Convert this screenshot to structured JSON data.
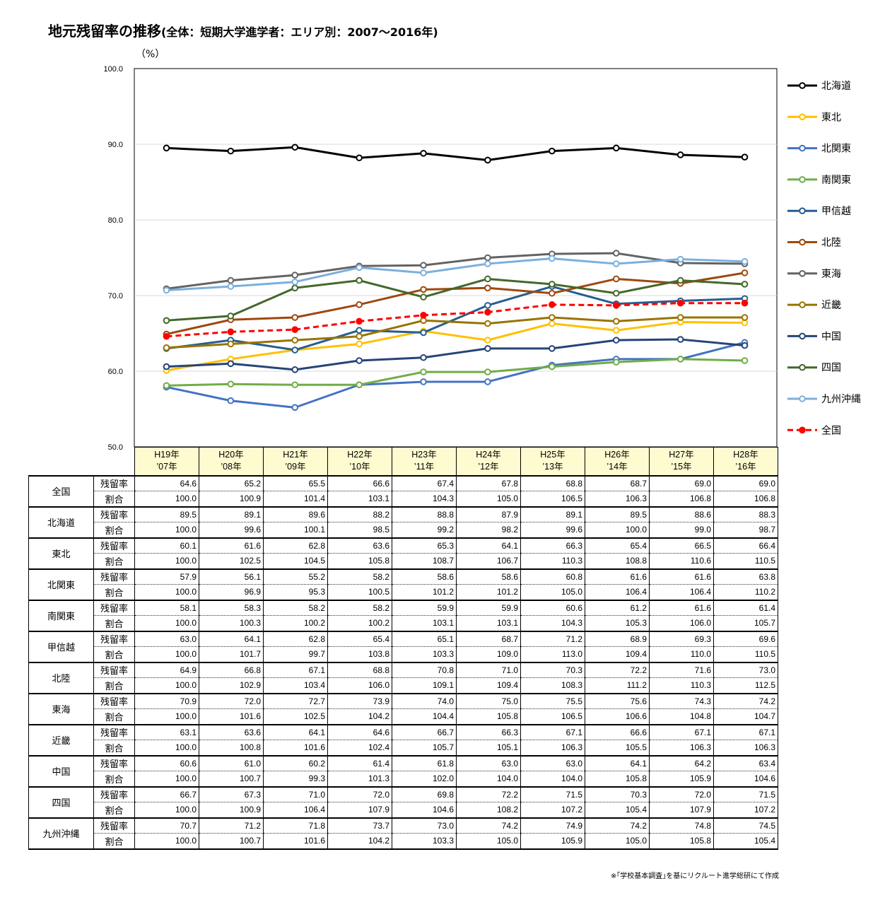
{
  "header": {
    "title_main": "地元残留率の推移",
    "title_sub": "(全体：短期大学進学者：エリア別：2007～2016年)",
    "unit": "（%）"
  },
  "chart_data": {
    "type": "line",
    "ylim": [
      50.0,
      100.0
    ],
    "yticks": [
      "50.0",
      "60.0",
      "70.0",
      "80.0",
      "90.0",
      "100.0"
    ],
    "grid": true,
    "legend_position": "right",
    "categories": [
      [
        "H19年",
        "’07年"
      ],
      [
        "H20年",
        "’08年"
      ],
      [
        "H21年",
        "’09年"
      ],
      [
        "H22年",
        "’10年"
      ],
      [
        "H23年",
        "’11年"
      ],
      [
        "H24年",
        "’12年"
      ],
      [
        "H25年",
        "’13年"
      ],
      [
        "H26年",
        "’14年"
      ],
      [
        "H27年",
        "’15年"
      ],
      [
        "H28年",
        "’16年"
      ]
    ],
    "series": [
      {
        "name": "北海道",
        "color": "#000000",
        "dashed": false,
        "values": [
          89.5,
          89.1,
          89.6,
          88.2,
          88.8,
          87.9,
          89.1,
          89.5,
          88.6,
          88.3
        ]
      },
      {
        "name": "東北",
        "color": "#ffc000",
        "dashed": false,
        "values": [
          60.1,
          61.6,
          62.8,
          63.6,
          65.3,
          64.1,
          66.3,
          65.4,
          66.5,
          66.4
        ]
      },
      {
        "name": "北関東",
        "color": "#4472c4",
        "dashed": false,
        "values": [
          57.9,
          56.1,
          55.2,
          58.2,
          58.6,
          58.6,
          60.8,
          61.6,
          61.6,
          63.8
        ]
      },
      {
        "name": "南関東",
        "color": "#70ad47",
        "dashed": false,
        "values": [
          58.1,
          58.3,
          58.2,
          58.2,
          59.9,
          59.9,
          60.6,
          61.2,
          61.6,
          61.4
        ]
      },
      {
        "name": "甲信越",
        "color": "#255e91",
        "dashed": false,
        "values": [
          63.0,
          64.1,
          62.8,
          65.4,
          65.1,
          68.7,
          71.2,
          68.9,
          69.3,
          69.6
        ]
      },
      {
        "name": "北陸",
        "color": "#9e480e",
        "dashed": false,
        "values": [
          64.9,
          66.8,
          67.1,
          68.8,
          70.8,
          71.0,
          70.3,
          72.2,
          71.6,
          73.0
        ]
      },
      {
        "name": "東海",
        "color": "#636363",
        "dashed": false,
        "values": [
          70.9,
          72.0,
          72.7,
          73.9,
          74.0,
          75.0,
          75.5,
          75.6,
          74.3,
          74.2
        ]
      },
      {
        "name": "近畿",
        "color": "#997300",
        "dashed": false,
        "values": [
          63.1,
          63.6,
          64.1,
          64.6,
          66.7,
          66.3,
          67.1,
          66.6,
          67.1,
          67.1
        ]
      },
      {
        "name": "中国",
        "color": "#264478",
        "dashed": false,
        "values": [
          60.6,
          61.0,
          60.2,
          61.4,
          61.8,
          63.0,
          63.0,
          64.1,
          64.2,
          63.4
        ]
      },
      {
        "name": "四国",
        "color": "#43682b",
        "dashed": false,
        "values": [
          66.7,
          67.3,
          71.0,
          72.0,
          69.8,
          72.2,
          71.5,
          70.3,
          72.0,
          71.5
        ]
      },
      {
        "name": "九州沖縄",
        "color": "#7cafdd",
        "dashed": false,
        "values": [
          70.7,
          71.2,
          71.8,
          73.7,
          73.0,
          74.2,
          74.9,
          74.2,
          74.8,
          74.5
        ]
      },
      {
        "name": "全国",
        "color": "#ff0000",
        "dashed": true,
        "values": [
          64.6,
          65.2,
          65.5,
          66.6,
          67.4,
          67.8,
          68.8,
          68.7,
          69.0,
          69.0
        ]
      }
    ]
  },
  "table": {
    "row_label_rate": "残留率",
    "row_label_ratio": "割合",
    "rows": [
      {
        "region": "全国",
        "rate": [
          "64.6",
          "65.2",
          "65.5",
          "66.6",
          "67.4",
          "67.8",
          "68.8",
          "68.7",
          "69.0",
          "69.0"
        ],
        "ratio": [
          "100.0",
          "100.9",
          "101.4",
          "103.1",
          "104.3",
          "105.0",
          "106.5",
          "106.3",
          "106.8",
          "106.8"
        ]
      },
      {
        "region": "北海道",
        "rate": [
          "89.5",
          "89.1",
          "89.6",
          "88.2",
          "88.8",
          "87.9",
          "89.1",
          "89.5",
          "88.6",
          "88.3"
        ],
        "ratio": [
          "100.0",
          "99.6",
          "100.1",
          "98.5",
          "99.2",
          "98.2",
          "99.6",
          "100.0",
          "99.0",
          "98.7"
        ]
      },
      {
        "region": "東北",
        "rate": [
          "60.1",
          "61.6",
          "62.8",
          "63.6",
          "65.3",
          "64.1",
          "66.3",
          "65.4",
          "66.5",
          "66.4"
        ],
        "ratio": [
          "100.0",
          "102.5",
          "104.5",
          "105.8",
          "108.7",
          "106.7",
          "110.3",
          "108.8",
          "110.6",
          "110.5"
        ]
      },
      {
        "region": "北関東",
        "rate": [
          "57.9",
          "56.1",
          "55.2",
          "58.2",
          "58.6",
          "58.6",
          "60.8",
          "61.6",
          "61.6",
          "63.8"
        ],
        "ratio": [
          "100.0",
          "96.9",
          "95.3",
          "100.5",
          "101.2",
          "101.2",
          "105.0",
          "106.4",
          "106.4",
          "110.2"
        ]
      },
      {
        "region": "南関東",
        "rate": [
          "58.1",
          "58.3",
          "58.2",
          "58.2",
          "59.9",
          "59.9",
          "60.6",
          "61.2",
          "61.6",
          "61.4"
        ],
        "ratio": [
          "100.0",
          "100.3",
          "100.2",
          "100.2",
          "103.1",
          "103.1",
          "104.3",
          "105.3",
          "106.0",
          "105.7"
        ]
      },
      {
        "region": "甲信越",
        "rate": [
          "63.0",
          "64.1",
          "62.8",
          "65.4",
          "65.1",
          "68.7",
          "71.2",
          "68.9",
          "69.3",
          "69.6"
        ],
        "ratio": [
          "100.0",
          "101.7",
          "99.7",
          "103.8",
          "103.3",
          "109.0",
          "113.0",
          "109.4",
          "110.0",
          "110.5"
        ]
      },
      {
        "region": "北陸",
        "rate": [
          "64.9",
          "66.8",
          "67.1",
          "68.8",
          "70.8",
          "71.0",
          "70.3",
          "72.2",
          "71.6",
          "73.0"
        ],
        "ratio": [
          "100.0",
          "102.9",
          "103.4",
          "106.0",
          "109.1",
          "109.4",
          "108.3",
          "111.2",
          "110.3",
          "112.5"
        ]
      },
      {
        "region": "東海",
        "rate": [
          "70.9",
          "72.0",
          "72.7",
          "73.9",
          "74.0",
          "75.0",
          "75.5",
          "75.6",
          "74.3",
          "74.2"
        ],
        "ratio": [
          "100.0",
          "101.6",
          "102.5",
          "104.2",
          "104.4",
          "105.8",
          "106.5",
          "106.6",
          "104.8",
          "104.7"
        ]
      },
      {
        "region": "近畿",
        "rate": [
          "63.1",
          "63.6",
          "64.1",
          "64.6",
          "66.7",
          "66.3",
          "67.1",
          "66.6",
          "67.1",
          "67.1"
        ],
        "ratio": [
          "100.0",
          "100.8",
          "101.6",
          "102.4",
          "105.7",
          "105.1",
          "106.3",
          "105.5",
          "106.3",
          "106.3"
        ]
      },
      {
        "region": "中国",
        "rate": [
          "60.6",
          "61.0",
          "60.2",
          "61.4",
          "61.8",
          "63.0",
          "63.0",
          "64.1",
          "64.2",
          "63.4"
        ],
        "ratio": [
          "100.0",
          "100.7",
          "99.3",
          "101.3",
          "102.0",
          "104.0",
          "104.0",
          "105.8",
          "105.9",
          "104.6"
        ]
      },
      {
        "region": "四国",
        "rate": [
          "66.7",
          "67.3",
          "71.0",
          "72.0",
          "69.8",
          "72.2",
          "71.5",
          "70.3",
          "72.0",
          "71.5"
        ],
        "ratio": [
          "100.0",
          "100.9",
          "106.4",
          "107.9",
          "104.6",
          "108.2",
          "107.2",
          "105.4",
          "107.9",
          "107.2"
        ]
      },
      {
        "region": "九州沖縄",
        "rate": [
          "70.7",
          "71.2",
          "71.8",
          "73.7",
          "73.0",
          "74.2",
          "74.9",
          "74.2",
          "74.8",
          "74.5"
        ],
        "ratio": [
          "100.0",
          "100.7",
          "101.6",
          "104.2",
          "103.3",
          "105.0",
          "105.9",
          "105.0",
          "105.8",
          "105.4"
        ]
      }
    ]
  },
  "footer": {
    "source": "※｢学校基本調査｣を基にリクルート進学総研にて作成"
  }
}
